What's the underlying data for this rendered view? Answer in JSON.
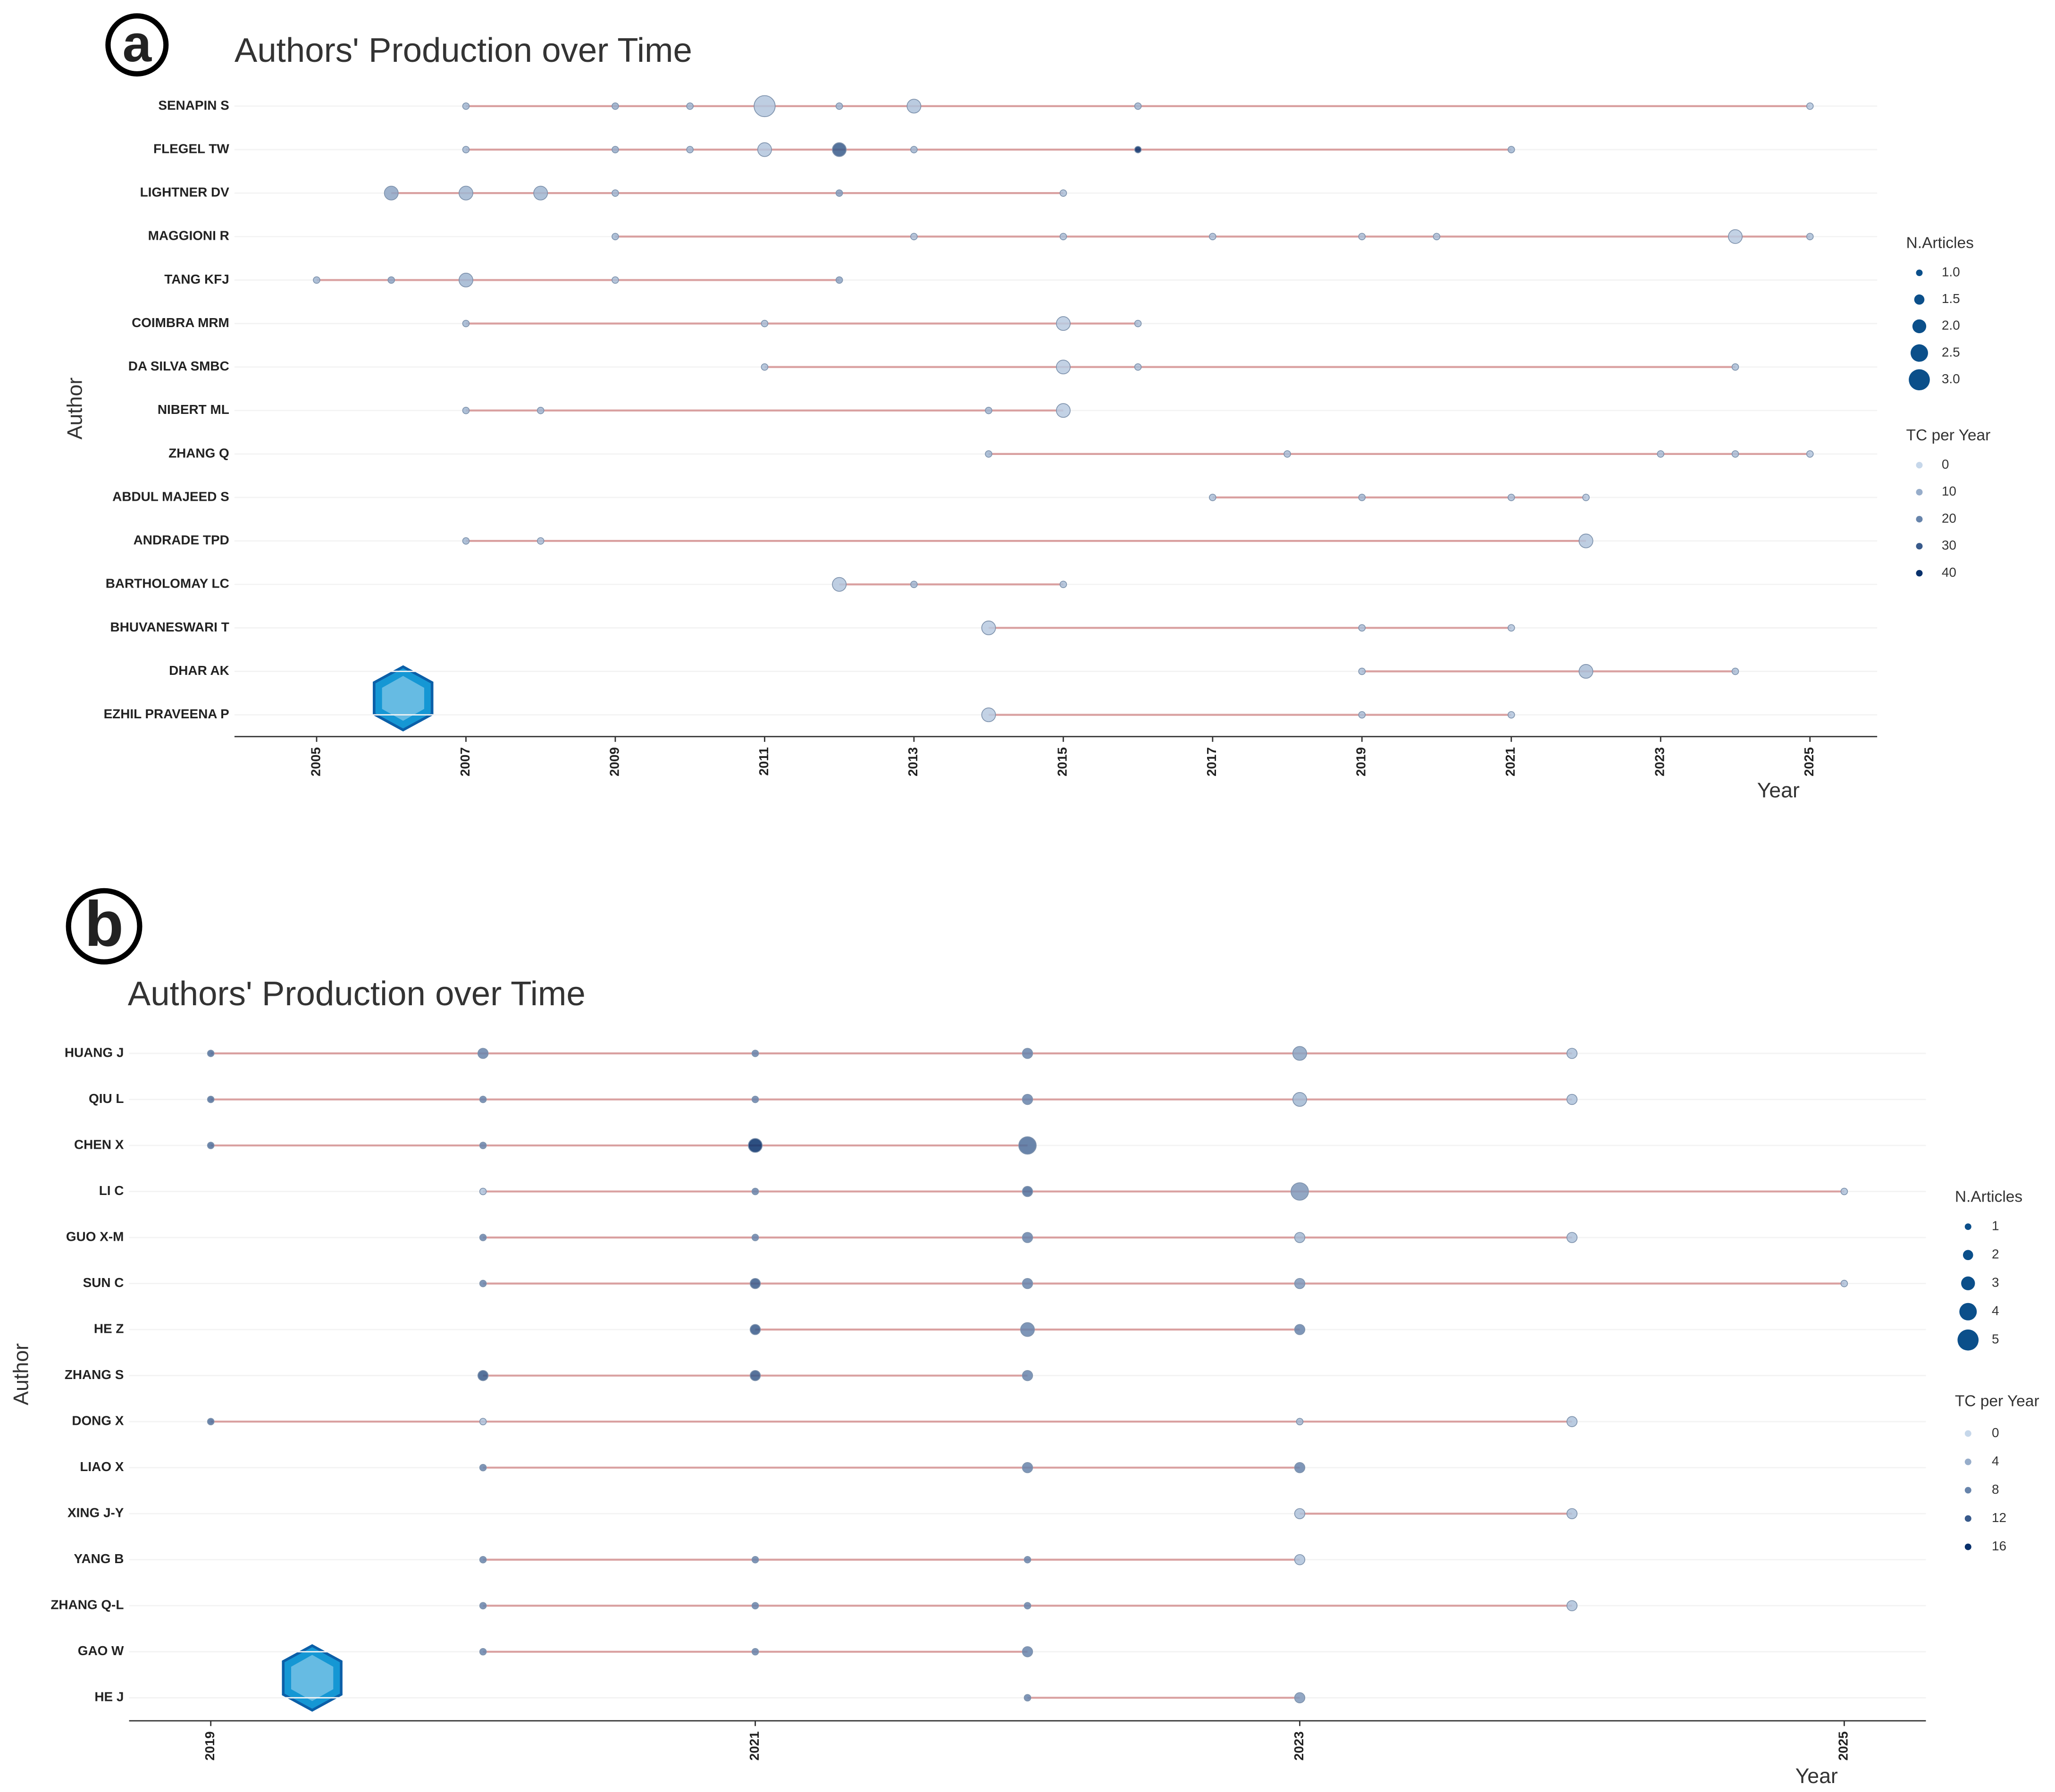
{
  "chart_data": [
    {
      "type": "bubble",
      "label": "a",
      "title": "Authors' Production over Time",
      "x_label": "Year",
      "y_label": "Author",
      "categories": [
        "SENAPIN S",
        "FLEGEL TW",
        "LIGHTNER DV",
        "MAGGIONI R",
        "TANG KFJ",
        "COIMBRA MRM",
        "DA SILVA SMBC",
        "NIBERT ML",
        "ZHANG Q",
        "ABDUL MAJEED S",
        "ANDRADE TPD",
        "BARTHOLOMAY LC",
        "BHUVANESWARI T",
        "DHAR AK",
        "EZHIL PRAVEENA P"
      ],
      "points": [
        {
          "x": [
            2007,
            2009,
            2010,
            2011,
            2012,
            2013,
            2016,
            2025
          ],
          "n": [
            1,
            1,
            1,
            3,
            1,
            2,
            1,
            1
          ],
          "tc": [
            8,
            10,
            8,
            4,
            8,
            5,
            8,
            4
          ]
        },
        {
          "x": [
            2007,
            2009,
            2010,
            2011,
            2012,
            2013,
            2016,
            2021
          ],
          "n": [
            1,
            1,
            1,
            2,
            2,
            1,
            1,
            1
          ],
          "tc": [
            8,
            10,
            8,
            4,
            30,
            8,
            40,
            8
          ]
        },
        {
          "x": [
            2006,
            2007,
            2008,
            2009,
            2012,
            2015
          ],
          "n": [
            2,
            2,
            2,
            1,
            1,
            1
          ],
          "tc": [
            12,
            8,
            8,
            8,
            14,
            6
          ]
        },
        {
          "x": [
            2009,
            2013,
            2015,
            2017,
            2019,
            2020,
            2024,
            2025
          ],
          "n": [
            1,
            1,
            1,
            1,
            1,
            1,
            2,
            1
          ],
          "tc": [
            8,
            6,
            6,
            6,
            6,
            6,
            3,
            6
          ]
        },
        {
          "x": [
            2005,
            2006,
            2007,
            2009,
            2012
          ],
          "n": [
            1,
            1,
            2,
            1,
            1
          ],
          "tc": [
            8,
            12,
            8,
            6,
            12
          ]
        },
        {
          "x": [
            2007,
            2011,
            2015,
            2016
          ],
          "n": [
            1,
            1,
            2,
            1
          ],
          "tc": [
            8,
            6,
            3,
            6
          ]
        },
        {
          "x": [
            2011,
            2015,
            2016,
            2024
          ],
          "n": [
            1,
            2,
            1,
            1
          ],
          "tc": [
            6,
            3,
            6,
            6
          ]
        },
        {
          "x": [
            2007,
            2008,
            2014,
            2015
          ],
          "n": [
            1,
            1,
            1,
            2
          ],
          "tc": [
            8,
            8,
            8,
            3
          ]
        },
        {
          "x": [
            2014,
            2018,
            2023,
            2024,
            2025
          ],
          "n": [
            1,
            1,
            1,
            1,
            1
          ],
          "tc": [
            8,
            6,
            6,
            6,
            4
          ]
        },
        {
          "x": [
            2017,
            2019,
            2021,
            2022
          ],
          "n": [
            1,
            1,
            1,
            1
          ],
          "tc": [
            6,
            8,
            6,
            4
          ]
        },
        {
          "x": [
            2007,
            2008,
            2022
          ],
          "n": [
            1,
            1,
            2
          ],
          "tc": [
            8,
            6,
            4
          ]
        },
        {
          "x": [
            2012,
            2013,
            2015
          ],
          "n": [
            2,
            1,
            1
          ],
          "tc": [
            4,
            8,
            6
          ]
        },
        {
          "x": [
            2014,
            2019,
            2021
          ],
          "n": [
            2,
            1,
            1
          ],
          "tc": [
            3,
            6,
            4
          ]
        },
        {
          "x": [
            2019,
            2022,
            2024
          ],
          "n": [
            1,
            2,
            1
          ],
          "tc": [
            6,
            6,
            6
          ]
        },
        {
          "x": [
            2014,
            2019,
            2021
          ],
          "n": [
            2,
            1,
            1
          ],
          "tc": [
            3,
            6,
            4
          ]
        }
      ],
      "xlim": [
        2003.9,
        2025.9
      ],
      "xticks": [
        2005,
        2007,
        2009,
        2011,
        2013,
        2015,
        2017,
        2019,
        2021,
        2023,
        2025
      ],
      "size_legend": {
        "title": "N.Articles",
        "ticks": [
          {
            "value": 1,
            "label": "1.0"
          },
          {
            "value": 1.5,
            "label": "1.5"
          },
          {
            "value": 2,
            "label": "2.0"
          },
          {
            "value": 2.5,
            "label": "2.5"
          },
          {
            "value": 3,
            "label": "3.0"
          }
        ]
      },
      "color_legend": {
        "title": "TC per Year",
        "ticks": [
          0,
          10,
          20,
          30,
          40
        ]
      },
      "colors": [
        "#c6d7ea",
        "#08306b"
      ],
      "line_color": "#d9a0a0"
    },
    {
      "type": "bubble",
      "label": "b",
      "title": "Authors' Production over Time",
      "x_label": "Year",
      "y_label": "Author",
      "categories": [
        "HUANG J",
        "QIU L",
        "CHEN X",
        "LI C",
        "GUO X-M",
        "SUN C",
        "HE Z",
        "ZHANG S",
        "DONG X",
        "LIAO X",
        "XING J-Y",
        "YANG B",
        "ZHANG Q-L",
        "GAO W",
        "HE J"
      ],
      "points": [
        {
          "x": [
            2019,
            2020,
            2021,
            2022,
            2023,
            2024
          ],
          "n": [
            1,
            2,
            1,
            2,
            3,
            2
          ],
          "tc": [
            10,
            8,
            8,
            8,
            5,
            2
          ]
        },
        {
          "x": [
            2019,
            2020,
            2021,
            2022,
            2023,
            2024
          ],
          "n": [
            1,
            1,
            1,
            2,
            3,
            2
          ],
          "tc": [
            10,
            8,
            8,
            8,
            3,
            2
          ]
        },
        {
          "x": [
            2019,
            2020,
            2021,
            2022
          ],
          "n": [
            1,
            1,
            3,
            4
          ],
          "tc": [
            10,
            8,
            16,
            10
          ]
        },
        {
          "x": [
            2020,
            2021,
            2022,
            2023,
            2025
          ],
          "n": [
            1,
            1,
            2,
            4,
            1
          ],
          "tc": [
            2,
            8,
            10,
            6,
            2
          ]
        },
        {
          "x": [
            2020,
            2021,
            2022,
            2023,
            2024
          ],
          "n": [
            1,
            1,
            2,
            2,
            2
          ],
          "tc": [
            8,
            8,
            8,
            3,
            2
          ]
        },
        {
          "x": [
            2020,
            2021,
            2022,
            2023,
            2025
          ],
          "n": [
            1,
            2,
            2,
            2,
            1
          ],
          "tc": [
            8,
            12,
            8,
            6,
            2
          ]
        },
        {
          "x": [
            2021,
            2022,
            2023
          ],
          "n": [
            2,
            3,
            2
          ],
          "tc": [
            12,
            8,
            8
          ]
        },
        {
          "x": [
            2020,
            2021,
            2022
          ],
          "n": [
            2,
            2,
            2
          ],
          "tc": [
            12,
            12,
            8
          ]
        },
        {
          "x": [
            2019,
            2020,
            2023,
            2024
          ],
          "n": [
            1,
            1,
            1,
            2
          ],
          "tc": [
            10,
            2,
            3,
            2
          ]
        },
        {
          "x": [
            2020,
            2022,
            2023
          ],
          "n": [
            1,
            2,
            2
          ],
          "tc": [
            8,
            8,
            8
          ]
        },
        {
          "x": [
            2023,
            2024
          ],
          "n": [
            2,
            2
          ],
          "tc": [
            2,
            2
          ]
        },
        {
          "x": [
            2020,
            2021,
            2022,
            2023
          ],
          "n": [
            1,
            1,
            1,
            2
          ],
          "tc": [
            8,
            8,
            8,
            2
          ]
        },
        {
          "x": [
            2020,
            2021,
            2022,
            2024
          ],
          "n": [
            1,
            1,
            1,
            2
          ],
          "tc": [
            8,
            8,
            8,
            2
          ]
        },
        {
          "x": [
            2020,
            2021,
            2022
          ],
          "n": [
            1,
            1,
            2
          ],
          "tc": [
            8,
            8,
            8
          ]
        },
        {
          "x": [
            2022,
            2023
          ],
          "n": [
            1,
            2
          ],
          "tc": [
            8,
            6
          ]
        }
      ],
      "xlim": [
        2018.7,
        2025.3
      ],
      "xticks": [
        2019,
        2021,
        2023,
        2025
      ],
      "size_legend": {
        "title": "N.Articles",
        "ticks": [
          1,
          2,
          3,
          4,
          5
        ]
      },
      "color_legend": {
        "title": "TC per Year",
        "ticks": [
          0,
          4,
          8,
          12,
          16
        ]
      },
      "colors": [
        "#c6d7ea",
        "#08306b"
      ],
      "line_color": "#d9a0a0"
    }
  ]
}
